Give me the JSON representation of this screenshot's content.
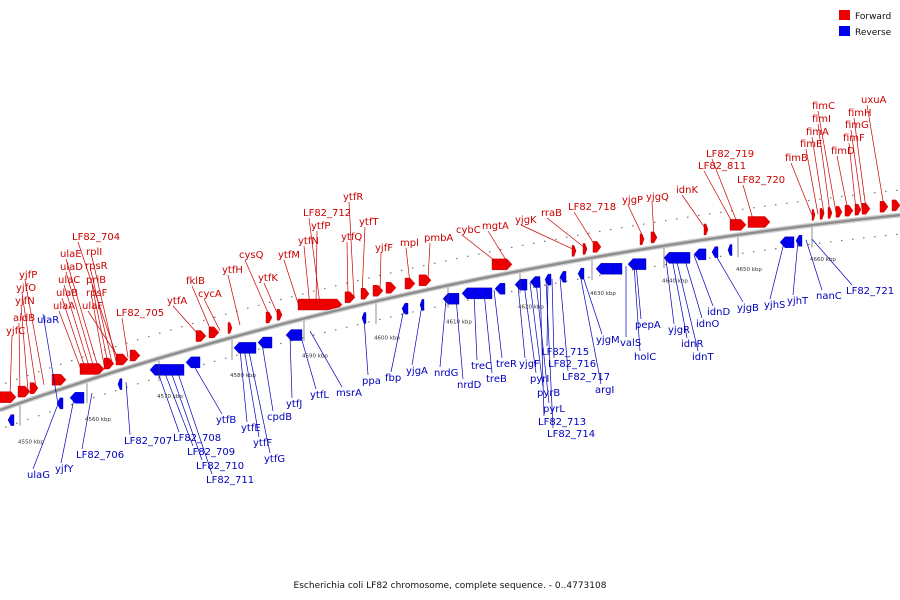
{
  "caption": "Escherichia coli LF82 chromosome, complete sequence. - 0..4773108",
  "legend": [
    {
      "label": "Forward",
      "color": "#ee0000"
    },
    {
      "label": "Reverse",
      "color": "#0000ee"
    }
  ],
  "colors": {
    "forward": "#ee0000",
    "reverse": "#0000ee",
    "backbone": "#999999"
  },
  "ticks": [
    "4550 kbp",
    "4560 kbp",
    "4570 kbp",
    "4580 kbp",
    "4590 kbp",
    "4600 kbp",
    "4610 kbp",
    "4620 kbp",
    "4630 kbp",
    "4640 kbp",
    "4650 kbp",
    "4660 kbp"
  ],
  "forward_labels": [
    "yjfC",
    "aidB",
    "yjfN",
    "yjfO",
    "yjfP",
    "ulaA",
    "ulaB",
    "ulaC",
    "ulaD",
    "ulaE",
    "rpsF",
    "priB",
    "rpsR",
    "rplI",
    "LF82_704",
    "ulaF",
    "LF82_705",
    "ytfA",
    "fklB",
    "cycA",
    "ytfH",
    "cysQ",
    "ytfK",
    "ytfM",
    "ytfN",
    "ytfP",
    "LF82_712",
    "ytfQ",
    "ytfR",
    "ytfT",
    "yjfF",
    "mpl",
    "pmbA",
    "cybC",
    "mgtA",
    "yjgK",
    "rraB",
    "LF82_718",
    "yjgP",
    "yjgQ",
    "idnK",
    "LF82_811",
    "LF82_719",
    "LF82_720",
    "fimB",
    "fimE",
    "fimA",
    "fimI",
    "fimC",
    "fimD",
    "fimF",
    "fimG",
    "fimH",
    "uxuA"
  ],
  "reverse_labels": [
    "ulaR",
    "ulaG",
    "yjfY",
    "LF82_706",
    "LF82_707",
    "LF82_708",
    "LF82_709",
    "LF82_710",
    "LF82_711",
    "ytfB",
    "ytfE",
    "ytfF",
    "ytfG",
    "cpdB",
    "ytfJ",
    "ytfL",
    "msrA",
    "ppa",
    "fbp",
    "yjgA",
    "nrdG",
    "nrdD",
    "treC",
    "treB",
    "treR",
    "yjgF",
    "pyrI",
    "pyrB",
    "pyrL",
    "LF82_713",
    "LF82_714",
    "LF82_715",
    "LF82_716",
    "LF82_717",
    "argI",
    "yjgM",
    "valS",
    "holC",
    "pepA",
    "yjgR",
    "idnR",
    "idnT",
    "idnO",
    "idnD",
    "yjgB",
    "yjhS",
    "yjhT",
    "nanC",
    "LF82_721"
  ]
}
